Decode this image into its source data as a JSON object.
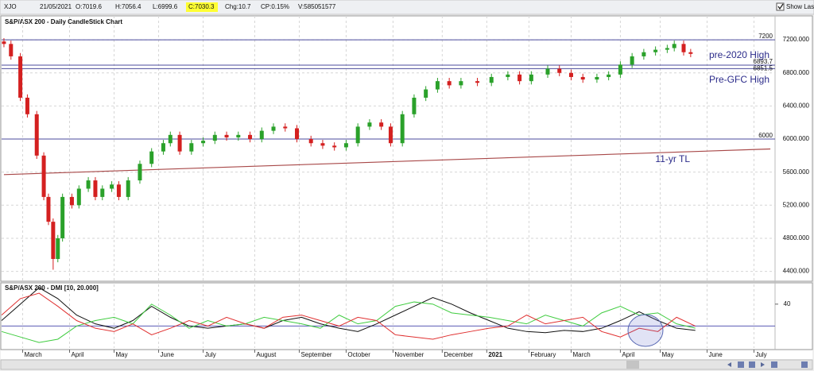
{
  "header": {
    "symbol": "XJO",
    "date": "21/05/2021",
    "open": "O:7019.6",
    "high": "H:7056.4",
    "low": "L:6999.6",
    "close": "C:7030.3",
    "change": "Chg:10.7",
    "change_pct": "CP:0.15%",
    "volume": "V:585051577",
    "show_last": "Show Last"
  },
  "chart_data": [
    {
      "type": "candlestick",
      "title": "S&P/ASX 200 - Daily CandleStick Chart",
      "xlim": [
        0,
        330
      ],
      "ylim": [
        4300,
        7470
      ],
      "yticks": [
        {
          "value": 4400,
          "label": "4400.000"
        },
        {
          "value": 4800,
          "label": "4800.000"
        },
        {
          "value": 5200,
          "label": "5200.000"
        },
        {
          "value": 5600,
          "label": "5600.000"
        },
        {
          "value": 6000,
          "label": "6000.000"
        },
        {
          "value": 6400,
          "label": "6400.000"
        },
        {
          "value": 6800,
          "label": "6800.000"
        },
        {
          "value": 7200,
          "label": "7200.000"
        }
      ],
      "grid": true,
      "up_color": "#2aa12a",
      "down_color": "#d42020",
      "x": [
        1,
        4,
        8,
        11,
        15,
        18,
        20,
        22,
        24,
        26,
        30,
        33,
        37,
        40,
        43,
        47,
        50,
        54,
        59,
        64,
        69,
        72,
        76,
        81,
        86,
        91,
        96,
        101,
        106,
        111,
        116,
        121,
        126,
        132,
        137,
        142,
        147,
        152,
        157,
        162,
        166,
        171,
        176,
        181,
        186,
        191,
        196,
        203,
        209,
        216,
        221,
        226,
        233,
        238,
        243,
        248,
        254,
        259,
        264,
        269,
        274,
        279,
        284,
        287,
        291,
        294
      ],
      "open": [
        7180,
        7150,
        7000,
        6500,
        6300,
        5800,
        5300,
        5000,
        4550,
        4800,
        5300,
        5200,
        5400,
        5500,
        5300,
        5400,
        5450,
        5300,
        5500,
        5700,
        5850,
        5950,
        6050,
        5850,
        5950,
        5980,
        6050,
        6020,
        6050,
        6000,
        6100,
        6150,
        6130,
        6000,
        5950,
        5920,
        5900,
        5950,
        6150,
        6200,
        6150,
        5950,
        6300,
        6500,
        6600,
        6700,
        6650,
        6700,
        6680,
        6750,
        6780,
        6700,
        6780,
        6850,
        6800,
        6750,
        6720,
        6750,
        6780,
        6900,
        7000,
        7050,
        7080,
        7100,
        7150,
        7050
      ],
      "high": [
        7220,
        7190,
        7040,
        6540,
        6340,
        5840,
        5340,
        5040,
        4840,
        5340,
        5340,
        5440,
        5540,
        5540,
        5440,
        5490,
        5490,
        5540,
        5740,
        5890,
        5990,
        6090,
        6090,
        5990,
        6020,
        6090,
        6090,
        6090,
        6090,
        6140,
        6190,
        6190,
        6170,
        6040,
        5990,
        5960,
        5990,
        6190,
        6240,
        6240,
        6190,
        6340,
        6540,
        6640,
        6740,
        6740,
        6740,
        6740,
        6790,
        6820,
        6820,
        6820,
        6890,
        6890,
        6840,
        6790,
        6790,
        6820,
        6940,
        7040,
        7090,
        7120,
        7140,
        7190,
        7190,
        7090
      ],
      "low": [
        7110,
        6960,
        6460,
        6260,
        5760,
        5260,
        4960,
        4420,
        4510,
        4760,
        5160,
        5160,
        5360,
        5260,
        5260,
        5360,
        5260,
        5260,
        5460,
        5660,
        5810,
        5910,
        5810,
        5810,
        5910,
        5940,
        5980,
        5980,
        5960,
        5960,
        6060,
        6090,
        5960,
        5910,
        5880,
        5860,
        5860,
        5910,
        6110,
        6110,
        5910,
        5910,
        6260,
        6460,
        6560,
        6610,
        6610,
        6640,
        6640,
        6710,
        6660,
        6660,
        6740,
        6760,
        6710,
        6680,
        6680,
        6710,
        6740,
        6860,
        6960,
        7010,
        7040,
        7060,
        7010,
        6990
      ],
      "close": [
        7150,
        7000,
        6500,
        6300,
        5800,
        5300,
        5000,
        4550,
        4800,
        5300,
        5200,
        5400,
        5500,
        5300,
        5400,
        5450,
        5300,
        5500,
        5700,
        5850,
        5950,
        6050,
        5850,
        5950,
        5980,
        6050,
        6020,
        6050,
        6000,
        6100,
        6150,
        6130,
        6000,
        5950,
        5920,
        5900,
        5950,
        6150,
        6200,
        6150,
        5950,
        6300,
        6500,
        6600,
        6700,
        6650,
        6700,
        6680,
        6750,
        6780,
        6700,
        6780,
        6850,
        6800,
        6750,
        6720,
        6750,
        6780,
        6900,
        7000,
        7050,
        7080,
        7100,
        7150,
        7050,
        7030
      ],
      "hlines": {
        "color": "#4b4b9c",
        "values": [
          7200,
          6893.7,
          6851.5,
          6000
        ]
      },
      "trendline": {
        "color": "#a84848",
        "x": [
          1,
          328
        ],
        "values": [
          5570,
          5880
        ]
      },
      "annotations": [
        "pre-2020 High",
        "Pre-GFC High",
        "11-yr TL"
      ]
    },
    {
      "type": "line",
      "title": "S&P/ASX 200 - DMI [10, 20.000]",
      "xlim": [
        0,
        330
      ],
      "ylim": [
        0,
        58
      ],
      "yticks": [
        40
      ],
      "xticks": [
        {
          "value": 9,
          "label": "March"
        },
        {
          "value": 29,
          "label": "April"
        },
        {
          "value": 48,
          "label": "May"
        },
        {
          "value": 67,
          "label": "June"
        },
        {
          "value": 86,
          "label": "July"
        },
        {
          "value": 108,
          "label": "August"
        },
        {
          "value": 127,
          "label": "September"
        },
        {
          "value": 147,
          "label": "October"
        },
        {
          "value": 167,
          "label": "November"
        },
        {
          "value": 188,
          "label": "December"
        },
        {
          "value": 207,
          "label": "2021"
        },
        {
          "value": 225,
          "label": "February"
        },
        {
          "value": 243,
          "label": "March"
        },
        {
          "value": 264,
          "label": "April"
        },
        {
          "value": 281,
          "label": "May"
        },
        {
          "value": 301,
          "label": "June"
        },
        {
          "value": 321,
          "label": "July"
        }
      ],
      "hline": {
        "value": 20,
        "color": "#5a5ab4"
      },
      "x": [
        0,
        8,
        16,
        24,
        32,
        40,
        48,
        56,
        64,
        72,
        80,
        88,
        96,
        104,
        112,
        120,
        128,
        136,
        144,
        152,
        160,
        168,
        176,
        184,
        192,
        200,
        208,
        216,
        224,
        232,
        240,
        248,
        256,
        264,
        272,
        280,
        288,
        296
      ],
      "series": [
        {
          "color": "#111111",
          "values": [
            25,
            40,
            55,
            45,
            30,
            22,
            18,
            25,
            38,
            28,
            20,
            18,
            20,
            22,
            18,
            25,
            28,
            22,
            18,
            15,
            22,
            30,
            38,
            46,
            40,
            32,
            25,
            18,
            15,
            14,
            16,
            15,
            18,
            25,
            33,
            25,
            18,
            16
          ]
        },
        {
          "color": "#3fcc3f",
          "values": [
            15,
            10,
            5,
            8,
            20,
            25,
            28,
            22,
            40,
            30,
            18,
            25,
            20,
            22,
            28,
            25,
            22,
            18,
            30,
            22,
            25,
            38,
            42,
            40,
            32,
            30,
            28,
            25,
            22,
            30,
            25,
            20,
            32,
            38,
            30,
            32,
            22,
            18
          ]
        },
        {
          "color": "#e03030",
          "values": [
            30,
            45,
            50,
            38,
            25,
            18,
            15,
            22,
            12,
            18,
            25,
            20,
            28,
            22,
            18,
            28,
            30,
            25,
            20,
            28,
            25,
            12,
            10,
            8,
            12,
            15,
            18,
            20,
            30,
            22,
            25,
            28,
            15,
            10,
            18,
            15,
            28,
            20
          ]
        }
      ]
    }
  ]
}
